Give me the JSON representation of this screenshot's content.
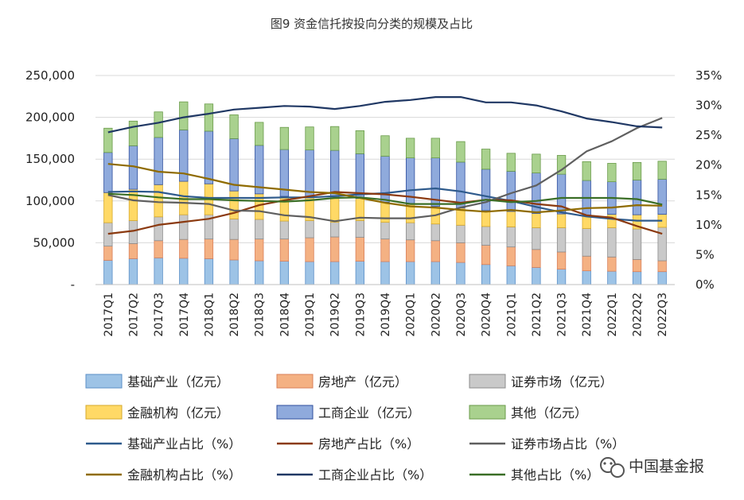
{
  "chart_data": {
    "type": "bar",
    "title": "图9 资金信托按投向分类的规模及占比",
    "categories": [
      "2017Q1",
      "2017Q2",
      "2017Q3",
      "2017Q4",
      "2018Q1",
      "2018Q2",
      "2018Q3",
      "2018Q4",
      "2019Q1",
      "2019Q2",
      "2019Q3",
      "2019Q4",
      "2020Q1",
      "2020Q2",
      "2020Q3",
      "2020Q4",
      "2021Q1",
      "2021Q2",
      "2021Q3",
      "2021Q4",
      "2022Q1",
      "2022Q2",
      "2022Q3"
    ],
    "y_left": {
      "range": [
        0,
        250000
      ],
      "tick_labels": [
        "-",
        "50,000",
        "100,000",
        "150,000",
        "200,000",
        "250,000"
      ]
    },
    "y_right": {
      "range": [
        0,
        35
      ],
      "tick_labels": [
        "0%",
        "5%",
        "10%",
        "15%",
        "20%",
        "25%",
        "30%",
        "35%"
      ]
    },
    "stack_series": [
      {
        "name": "基础产业（亿元）",
        "color": "#9dc3e6",
        "edge": "#5b8fc7",
        "values": [
          29000,
          31000,
          32000,
          31500,
          31000,
          29500,
          28500,
          28000,
          27500,
          27500,
          28000,
          27500,
          27500,
          27500,
          26500,
          24000,
          22500,
          20500,
          18500,
          16500,
          16000,
          15500,
          15500
        ]
      },
      {
        "name": "房地产（亿元）",
        "color": "#f4b183",
        "edge": "#d9805a",
        "values": [
          17000,
          18000,
          20500,
          22500,
          23500,
          24500,
          26000,
          26500,
          28500,
          29500,
          28500,
          27000,
          26000,
          25000,
          23500,
          23000,
          22500,
          21500,
          20500,
          17500,
          17000,
          14500,
          13000
        ]
      },
      {
        "name": "证券市场（亿元）",
        "color": "#c9c9c9",
        "edge": "#8c8c8c",
        "values": [
          28000,
          27500,
          28500,
          29500,
          29000,
          24500,
          23500,
          21500,
          20500,
          17500,
          20000,
          20000,
          20500,
          20000,
          21000,
          22500,
          24000,
          26000,
          29000,
          33000,
          35000,
          36500,
          40000
        ]
      },
      {
        "name": "金融机构（亿元）",
        "color": "#ffd966",
        "edge": "#d6a92c",
        "values": [
          36000,
          37500,
          38500,
          40000,
          37000,
          33500,
          30500,
          29500,
          28500,
          28500,
          26500,
          24000,
          22000,
          21000,
          20500,
          19000,
          18500,
          17000,
          16500,
          16000,
          16000,
          17000,
          15500
        ]
      },
      {
        "name": "工商企业（亿元）",
        "color": "#8faadc",
        "edge": "#2f4f9e",
        "values": [
          48000,
          52000,
          56500,
          61500,
          63000,
          62500,
          58000,
          56000,
          56000,
          57500,
          53500,
          55000,
          55500,
          58000,
          55000,
          49500,
          48000,
          48500,
          47500,
          41500,
          39000,
          41500,
          42000
        ]
      },
      {
        "name": "其他（亿元）",
        "color": "#a9d18e",
        "edge": "#6a9b4a",
        "values": [
          29000,
          29500,
          30500,
          33500,
          32500,
          28500,
          27500,
          26500,
          27500,
          28500,
          27500,
          24500,
          23500,
          23500,
          24500,
          24000,
          21500,
          22500,
          22500,
          22500,
          22000,
          21000,
          21500
        ]
      }
    ],
    "line_series": [
      {
        "name": "基础产业占比（%）",
        "color": "#2e5a8c",
        "values": [
          15.5,
          15.6,
          15.5,
          14.8,
          14.5,
          14.5,
          14.5,
          14.6,
          14.6,
          14.8,
          15.1,
          15.3,
          15.8,
          16.1,
          15.6,
          14.8,
          14.0,
          13.0,
          12.1,
          11.4,
          11.0,
          10.7,
          10.7
        ]
      },
      {
        "name": "房地产占比（%）",
        "color": "#8b3a10",
        "values": [
          8.5,
          9.0,
          10.0,
          10.5,
          11.0,
          12.0,
          13.3,
          14.1,
          14.8,
          15.5,
          15.3,
          15.1,
          14.7,
          14.2,
          13.7,
          14.2,
          14.1,
          13.5,
          13.1,
          11.6,
          11.2,
          9.8,
          8.5
        ]
      },
      {
        "name": "证券市场占比（%）",
        "color": "#5f5f5f",
        "values": [
          15.0,
          14.1,
          13.8,
          13.7,
          13.5,
          12.4,
          12.3,
          11.6,
          11.3,
          10.6,
          11.2,
          11.1,
          11.1,
          11.6,
          12.9,
          13.8,
          15.3,
          16.6,
          19.2,
          22.3,
          24.0,
          26.2,
          27.9
        ]
      },
      {
        "name": "金融机构占比（%）",
        "color": "#8f6b00",
        "values": [
          20.2,
          19.8,
          18.9,
          18.6,
          17.7,
          16.7,
          16.3,
          15.9,
          15.5,
          15.3,
          14.5,
          13.7,
          13.1,
          12.9,
          12.5,
          12.2,
          12.5,
          12.1,
          12.4,
          12.8,
          12.9,
          13.3,
          13.2
        ]
      },
      {
        "name": "工商企业占比（%）",
        "color": "#203864",
        "values": [
          25.5,
          26.4,
          27.1,
          28.0,
          28.6,
          29.3,
          29.6,
          29.9,
          29.8,
          29.4,
          29.9,
          30.6,
          30.9,
          31.4,
          31.4,
          30.5,
          30.5,
          30.0,
          29.0,
          27.8,
          27.2,
          26.5,
          26.3
        ]
      },
      {
        "name": "其他占比（%）",
        "color": "#3a6e26",
        "values": [
          15.2,
          15.0,
          14.6,
          14.3,
          14.3,
          14.1,
          14.0,
          13.9,
          14.1,
          14.5,
          14.6,
          14.2,
          13.5,
          13.5,
          13.5,
          14.2,
          13.8,
          14.0,
          14.5,
          14.5,
          14.5,
          14.3,
          13.4
        ]
      }
    ],
    "legend_position": "bottom"
  },
  "watermark": {
    "label": "中国基金报",
    "icon": "wechat-icon"
  }
}
